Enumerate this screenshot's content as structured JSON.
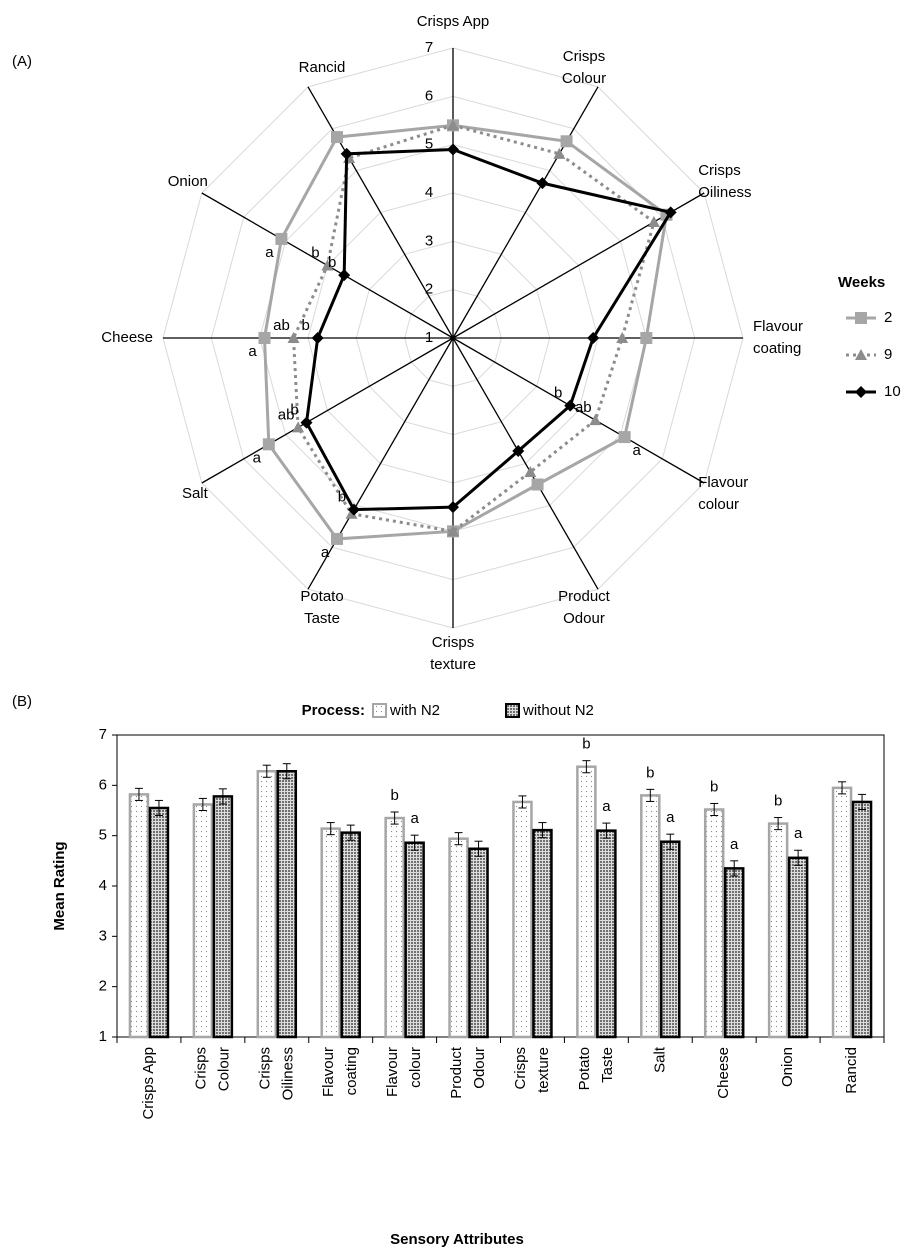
{
  "chart_data": [
    {
      "type": "radar",
      "panel_label": "(A)",
      "categories": [
        "Crisps App",
        "Crisps\nColour",
        "Crisps\nOiliness",
        "Flavour\ncoating",
        "Flavour\ncolour",
        "Product\nOdour",
        "Crisps\ntexture",
        "Potato\nTaste",
        "Salt",
        "Cheese",
        "Onion",
        "Rancid"
      ],
      "rlim": [
        1,
        7
      ],
      "rticks": [
        1,
        2,
        3,
        4,
        5,
        6,
        7
      ],
      "grid": true,
      "legend_title": "Weeks",
      "legend": "right",
      "series": [
        {
          "name": "2",
          "color": "#a6a6a6",
          "marker": "square",
          "dash": "solid",
          "values": [
            5.4,
            5.7,
            6.1,
            5.0,
            5.1,
            4.5,
            5.0,
            5.8,
            5.4,
            4.9,
            5.1,
            5.8
          ],
          "letters": [
            null,
            null,
            null,
            null,
            "a",
            null,
            null,
            "a",
            "a",
            "a",
            "a",
            null
          ]
        },
        {
          "name": "9",
          "color": "#8c8c8c",
          "marker": "triangle",
          "dash": "dotted",
          "values": [
            5.4,
            5.4,
            5.8,
            4.5,
            4.4,
            4.2,
            5.0,
            5.2,
            4.7,
            4.3,
            4.0,
            5.3
          ],
          "letters": [
            null,
            null,
            null,
            null,
            "ab",
            null,
            null,
            null,
            "ab",
            "ab",
            "b",
            null
          ]
        },
        {
          "name": "10",
          "color": "#000000",
          "marker": "diamond",
          "dash": "solid",
          "values": [
            4.9,
            4.7,
            6.2,
            3.9,
            3.8,
            3.7,
            4.5,
            5.1,
            4.5,
            3.8,
            3.6,
            5.4
          ],
          "letters": [
            null,
            null,
            null,
            null,
            "b",
            null,
            null,
            "b",
            "b",
            "b",
            "b",
            null
          ]
        }
      ]
    },
    {
      "type": "bar",
      "panel_label": "(B)",
      "legend_title": "Process:",
      "legend": "top",
      "x_label": "Sensory Attributes",
      "y_label": "Mean Rating",
      "categories": [
        "Crisps App",
        "Crisps\nColour",
        "Crisps\nOiliness",
        "Flavour\ncoating",
        "Flavour\ncolour",
        "Product\nOdour",
        "Crisps\ntexture",
        "Potato\nTaste",
        "Salt",
        "Cheese",
        "Onion",
        "Rancid"
      ],
      "ylim": [
        1,
        7
      ],
      "yticks": [
        1,
        2,
        3,
        4,
        5,
        6,
        7
      ],
      "series": [
        {
          "name": "with N2",
          "color": "#a6a6a6",
          "pattern": "light",
          "values": [
            5.82,
            5.62,
            6.28,
            5.14,
            5.35,
            4.94,
            5.67,
            6.37,
            5.8,
            5.52,
            5.24,
            5.95
          ],
          "errors": [
            0.12,
            0.12,
            0.12,
            0.12,
            0.12,
            0.12,
            0.12,
            0.12,
            0.12,
            0.12,
            0.12,
            0.12
          ],
          "letters": [
            null,
            null,
            null,
            null,
            "b",
            null,
            null,
            "b",
            "b",
            "b",
            "b",
            null
          ]
        },
        {
          "name": "without N2",
          "color": "#000000",
          "pattern": "dark",
          "values": [
            5.55,
            5.78,
            6.28,
            5.06,
            4.86,
            4.74,
            5.11,
            5.1,
            4.88,
            4.35,
            4.56,
            5.67
          ],
          "errors": [
            0.15,
            0.15,
            0.15,
            0.15,
            0.15,
            0.15,
            0.15,
            0.15,
            0.15,
            0.15,
            0.15,
            0.15
          ],
          "letters": [
            null,
            null,
            null,
            null,
            "a",
            null,
            null,
            "a",
            "a",
            "a",
            "a",
            null
          ]
        }
      ]
    }
  ]
}
